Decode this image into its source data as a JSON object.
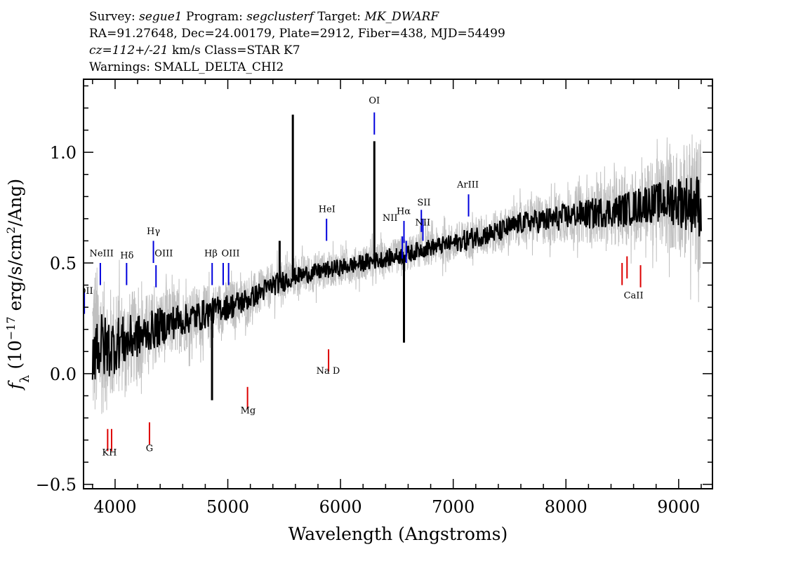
{
  "header": {
    "survey_label": "Survey:",
    "survey": "segue1",
    "program_label": "Program:",
    "program": "segclusterf",
    "target_label": "Target:",
    "target": "MK_DWARF",
    "line2": "RA=91.27648, Dec=24.00179, Plate=2912, Fiber=438, MJD=54499",
    "cz": "cz=112+/-21",
    "line3_rest": "km/s Class=STAR K7",
    "line4": "Warnings: SMALL_DELTA_CHI2"
  },
  "chart_data": {
    "type": "line",
    "xlabel": "Wavelength (Angstroms)",
    "ylabel": "f_λ (10^-17 erg/s/cm²/Ang)",
    "xlim": [
      3720,
      9300
    ],
    "ylim": [
      -0.52,
      1.33
    ],
    "x_ticks": [
      "4000",
      "5000",
      "6000",
      "7000",
      "8000",
      "9000"
    ],
    "y_ticks": [
      "−0.5",
      "0.0",
      "0.5",
      "1.0"
    ],
    "series": [
      {
        "role": "noise-envelope",
        "color": "#c0c0c0",
        "x": [
          3800,
          3850,
          3900,
          3950,
          4000,
          4050,
          4100,
          4150,
          4200,
          4250,
          4300,
          4350,
          4400,
          4450,
          4500,
          4550,
          4600,
          4650,
          4700,
          4750,
          4800,
          4850,
          4900,
          4950,
          5000,
          5100,
          5200,
          5300,
          5400,
          5500,
          5600,
          5700,
          5800,
          5900,
          6000,
          6100,
          6200,
          6300,
          6400,
          6500,
          6600,
          6700,
          6800,
          6900,
          7000,
          7100,
          7200,
          7300,
          7400,
          7500,
          7600,
          7700,
          7800,
          7900,
          8000,
          8100,
          8200,
          8300,
          8400,
          8500,
          8600,
          8700,
          8800,
          8900,
          9000,
          9100,
          9200
        ],
        "y": [
          0.15,
          0.13,
          0.12,
          0.12,
          0.13,
          0.15,
          0.14,
          0.16,
          0.17,
          0.17,
          0.19,
          0.2,
          0.21,
          0.22,
          0.23,
          0.24,
          0.24,
          0.25,
          0.26,
          0.26,
          0.27,
          0.28,
          0.29,
          0.3,
          0.3,
          0.32,
          0.34,
          0.37,
          0.4,
          0.42,
          0.44,
          0.45,
          0.46,
          0.47,
          0.48,
          0.49,
          0.5,
          0.51,
          0.52,
          0.53,
          0.54,
          0.56,
          0.57,
          0.58,
          0.59,
          0.6,
          0.62,
          0.63,
          0.64,
          0.66,
          0.68,
          0.69,
          0.69,
          0.7,
          0.71,
          0.72,
          0.72,
          0.73,
          0.73,
          0.74,
          0.75,
          0.77,
          0.77,
          0.78,
          0.78,
          0.77,
          0.76
        ],
        "amplitude": [
          0.42,
          0.35,
          0.3,
          0.28,
          0.25,
          0.24,
          0.22,
          0.22,
          0.2,
          0.19,
          0.18,
          0.18,
          0.17,
          0.17,
          0.16,
          0.15,
          0.15,
          0.14,
          0.14,
          0.14,
          0.13,
          0.13,
          0.12,
          0.12,
          0.12,
          0.11,
          0.11,
          0.1,
          0.1,
          0.09,
          0.09,
          0.09,
          0.09,
          0.08,
          0.08,
          0.08,
          0.08,
          0.08,
          0.08,
          0.08,
          0.08,
          0.08,
          0.08,
          0.09,
          0.09,
          0.09,
          0.09,
          0.1,
          0.1,
          0.1,
          0.1,
          0.11,
          0.11,
          0.12,
          0.12,
          0.13,
          0.13,
          0.14,
          0.15,
          0.16,
          0.17,
          0.18,
          0.2,
          0.22,
          0.25,
          0.28,
          0.32
        ]
      },
      {
        "role": "spectrum",
        "color": "#000000",
        "x": [
          3800,
          3850,
          3900,
          3950,
          4000,
          4050,
          4100,
          4150,
          4200,
          4250,
          4300,
          4350,
          4400,
          4450,
          4500,
          4550,
          4600,
          4650,
          4700,
          4750,
          4800,
          4850,
          4900,
          4950,
          5000,
          5100,
          5200,
          5300,
          5400,
          5500,
          5600,
          5700,
          5800,
          5900,
          6000,
          6100,
          6200,
          6300,
          6400,
          6500,
          6600,
          6700,
          6800,
          6900,
          7000,
          7100,
          7200,
          7300,
          7400,
          7500,
          7600,
          7700,
          7800,
          7900,
          8000,
          8100,
          8200,
          8300,
          8400,
          8500,
          8600,
          8700,
          8800,
          8900,
          9000,
          9100,
          9200
        ],
        "y": [
          0.15,
          0.13,
          0.12,
          0.12,
          0.13,
          0.15,
          0.14,
          0.16,
          0.17,
          0.17,
          0.19,
          0.2,
          0.21,
          0.22,
          0.23,
          0.24,
          0.24,
          0.25,
          0.26,
          0.26,
          0.27,
          0.28,
          0.29,
          0.3,
          0.3,
          0.32,
          0.34,
          0.37,
          0.4,
          0.42,
          0.44,
          0.45,
          0.46,
          0.47,
          0.48,
          0.49,
          0.5,
          0.51,
          0.52,
          0.53,
          0.54,
          0.56,
          0.57,
          0.58,
          0.59,
          0.6,
          0.62,
          0.63,
          0.64,
          0.66,
          0.68,
          0.69,
          0.69,
          0.7,
          0.71,
          0.72,
          0.72,
          0.73,
          0.73,
          0.74,
          0.75,
          0.77,
          0.77,
          0.78,
          0.78,
          0.77,
          0.76
        ],
        "amplitude": [
          0.2,
          0.17,
          0.15,
          0.14,
          0.13,
          0.12,
          0.11,
          0.11,
          0.1,
          0.1,
          0.09,
          0.09,
          0.09,
          0.08,
          0.08,
          0.08,
          0.07,
          0.07,
          0.07,
          0.07,
          0.07,
          0.06,
          0.06,
          0.06,
          0.06,
          0.06,
          0.05,
          0.05,
          0.05,
          0.05,
          0.04,
          0.04,
          0.04,
          0.04,
          0.04,
          0.04,
          0.04,
          0.04,
          0.04,
          0.04,
          0.04,
          0.04,
          0.04,
          0.04,
          0.04,
          0.05,
          0.05,
          0.05,
          0.05,
          0.05,
          0.05,
          0.05,
          0.06,
          0.06,
          0.06,
          0.06,
          0.07,
          0.07,
          0.07,
          0.08,
          0.08,
          0.09,
          0.09,
          0.1,
          0.12,
          0.13,
          0.15
        ],
        "spikes": [
          {
            "x": 5577,
            "y": 1.17
          },
          {
            "x": 6300,
            "y": 1.05
          },
          {
            "x": 6563,
            "y": 0.14
          },
          {
            "x": 5460,
            "y": 0.6
          },
          {
            "x": 4860,
            "y": -0.12
          }
        ]
      }
    ],
    "lines": [
      {
        "name": "OII",
        "x": 3727,
        "y": 0.37,
        "color": "blue"
      },
      {
        "name": "NeIII",
        "x": 3869,
        "y": 0.5,
        "color": "blue"
      },
      {
        "name": "Hδ",
        "x": 4102,
        "y": 0.5,
        "color": "blue"
      },
      {
        "name": "Hγ",
        "x": 4340,
        "y": 0.6,
        "color": "blue"
      },
      {
        "name": "OIII",
        "x": 4363,
        "y": 0.49,
        "color": "blue"
      },
      {
        "name": "Hβ",
        "x": 4861,
        "y": 0.5,
        "color": "blue"
      },
      {
        "name": "OIII",
        "x": 4959,
        "y": 0.5,
        "color": "blue"
      },
      {
        "name": "OIII",
        "x": 5007,
        "y": 0.5,
        "color": "blue"
      },
      {
        "name": "HeI",
        "x": 5876,
        "y": 0.7,
        "color": "blue"
      },
      {
        "name": "OI",
        "x": 6300,
        "y": 1.18,
        "color": "blue"
      },
      {
        "name": "NII",
        "x": 6548,
        "y": 0.62,
        "color": "blue"
      },
      {
        "name": "Hα",
        "x": 6563,
        "y": 0.69,
        "color": "blue"
      },
      {
        "name": "NII",
        "x": 6583,
        "y": 0.6,
        "color": "blue"
      },
      {
        "name": "SII",
        "x": 6717,
        "y": 0.74,
        "color": "blue"
      },
      {
        "name": "SII",
        "x": 6731,
        "y": 0.7,
        "color": "blue"
      },
      {
        "name": "ArIII",
        "x": 7136,
        "y": 0.81,
        "color": "blue"
      },
      {
        "name": "K",
        "x": 3934,
        "y": -0.25,
        "color": "red"
      },
      {
        "name": "H",
        "x": 3969,
        "y": -0.25,
        "color": "red"
      },
      {
        "name": "G",
        "x": 4305,
        "y": -0.22,
        "color": "red"
      },
      {
        "name": "Mg",
        "x": 5175,
        "y": -0.06,
        "color": "red"
      },
      {
        "name": "Na D",
        "x": 5894,
        "y": 0.11,
        "color": "red"
      },
      {
        "name": "CaII",
        "x": 8498,
        "y": 0.5,
        "color": "red"
      },
      {
        "name": "CaII",
        "x": 8542,
        "y": 0.53,
        "color": "red"
      },
      {
        "name": "CaII",
        "x": 8662,
        "y": 0.49,
        "color": "red"
      }
    ],
    "line_labels": [
      {
        "text": "OII",
        "x": 3740,
        "y": 0.36
      },
      {
        "text": "NeIII",
        "x": 3880,
        "y": 0.53
      },
      {
        "text": "Hδ",
        "x": 4105,
        "y": 0.52
      },
      {
        "text": "Hγ",
        "x": 4340,
        "y": 0.63
      },
      {
        "text": "OIII",
        "x": 4432,
        "y": 0.53
      },
      {
        "text": "Hβ",
        "x": 4850,
        "y": 0.53
      },
      {
        "text": "OIII",
        "x": 5025,
        "y": 0.53
      },
      {
        "text": "HeI",
        "x": 5880,
        "y": 0.73
      },
      {
        "text": "OI",
        "x": 6300,
        "y": 1.22
      },
      {
        "text": "NII",
        "x": 6440,
        "y": 0.69
      },
      {
        "text": "Hα",
        "x": 6560,
        "y": 0.72
      },
      {
        "text": "SII",
        "x": 6740,
        "y": 0.76
      },
      {
        "text": "NII",
        "x": 6730,
        "y": 0.67
      },
      {
        "text": "ArIII",
        "x": 7130,
        "y": 0.84
      },
      {
        "text": "KH",
        "x": 3950,
        "y": -0.37
      },
      {
        "text": "G",
        "x": 4305,
        "y": -0.35
      },
      {
        "text": "Mg",
        "x": 5180,
        "y": -0.18
      },
      {
        "text": "Na  D",
        "x": 5890,
        "y": 0.0
      },
      {
        "text": "CaII",
        "x": 8600,
        "y": 0.34
      }
    ]
  }
}
